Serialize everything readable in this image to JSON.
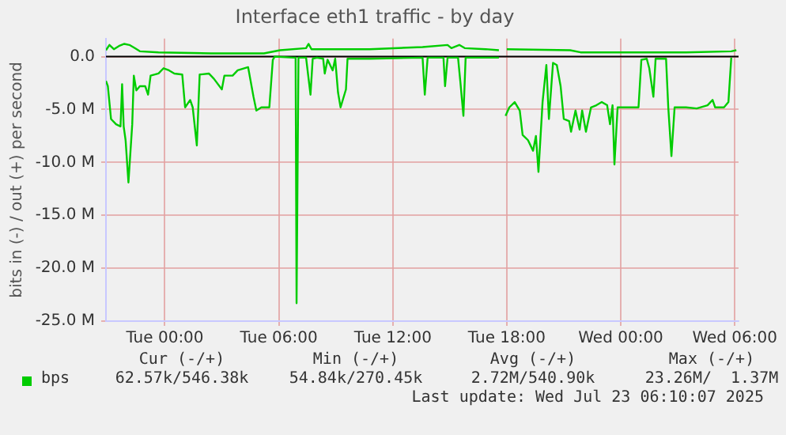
{
  "chart_data": {
    "type": "line",
    "title": "Interface eth1 traffic - by day",
    "ylabel": "bits in (-) / out (+) per second",
    "xlim": [
      "2025-07-21T20:54",
      "2025-07-23T06:12"
    ],
    "xticks": [
      {
        "value": "2025-07-22T00:00",
        "label": "Tue 00:00"
      },
      {
        "value": "2025-07-22T06:00",
        "label": "Tue 06:00"
      },
      {
        "value": "2025-07-22T12:00",
        "label": "Tue 12:00"
      },
      {
        "value": "2025-07-22T18:00",
        "label": "Tue 18:00"
      },
      {
        "value": "2025-07-23T00:00",
        "label": "Wed 00:00"
      },
      {
        "value": "2025-07-23T06:00",
        "label": "Wed 06:00"
      }
    ],
    "ylim": [
      -25,
      1.7
    ],
    "yticks": [
      {
        "value": -25,
        "label": "-25.0 M"
      },
      {
        "value": -20,
        "label": "-20.0 M"
      },
      {
        "value": -15,
        "label": "-15.0 M"
      },
      {
        "value": -10,
        "label": "-10.0 M"
      },
      {
        "value": -5,
        "label": "-5.0 M"
      },
      {
        "value": 0,
        "label": "0.0"
      }
    ],
    "grid": true,
    "legend": "bottom",
    "marker": "none",
    "line_style": "solid",
    "ref_lines": [
      {
        "axis": "y",
        "value": 0,
        "color": "#000000"
      }
    ],
    "series": [
      {
        "name": "bps",
        "color": "#00cc00",
        "x": [
          "2025-07-21T20:54",
          "2025-07-21T21:00",
          "2025-07-21T21:10",
          "2025-07-21T21:26",
          "2025-07-21T21:40",
          "2025-07-21T21:45",
          "2025-07-21T21:50",
          "2025-07-21T21:56",
          "2025-07-21T22:05",
          "2025-07-21T22:17",
          "2025-07-21T22:22",
          "2025-07-21T22:30",
          "2025-07-21T22:41",
          "2025-07-21T22:58",
          "2025-07-21T23:07",
          "2025-07-21T23:15",
          "2025-07-21T23:40",
          "2025-07-21T23:56",
          "2025-07-22T00:13",
          "2025-07-22T00:30",
          "2025-07-22T00:55",
          "2025-07-22T01:04",
          "2025-07-22T01:20",
          "2025-07-22T01:28",
          "2025-07-22T01:41",
          "2025-07-22T01:50",
          "2025-07-22T02:19",
          "2025-07-22T02:35",
          "2025-07-22T03:00",
          "2025-07-22T03:08",
          "2025-07-22T03:34",
          "2025-07-22T03:50",
          "2025-07-22T04:23",
          "2025-07-22T04:40",
          "2025-07-22T04:49",
          "2025-07-22T05:05",
          "2025-07-22T05:30",
          "2025-07-22T05:41",
          "2025-07-22T05:47",
          "2025-07-22T06:45",
          "2025-07-22T06:53",
          "2025-07-22T06:56",
          "2025-07-22T07:02",
          "2025-07-22T07:26",
          "2025-07-22T07:40",
          "2025-07-22T07:47",
          "2025-07-22T08:00",
          "2025-07-22T08:20",
          "2025-07-22T08:25",
          "2025-07-22T08:34",
          "2025-07-22T08:50",
          "2025-07-22T08:58",
          "2025-07-22T09:07",
          "2025-07-22T09:15",
          "2025-07-22T09:32",
          "2025-07-22T09:37",
          "2025-07-22T10:47",
          "2025-07-22T13:34",
          "2025-07-22T13:41",
          "2025-07-22T13:50",
          "2025-07-22T14:40",
          "2025-07-22T14:45",
          "2025-07-22T14:53",
          "2025-07-22T15:26",
          "2025-07-22T15:34",
          "2025-07-22T15:43",
          "2025-07-22T15:50",
          "2025-07-22T17:26",
          "2025-07-22T17:35",
          "2025-07-22T17:48",
          "2025-07-22T17:56",
          "2025-07-22T18:08",
          "2025-07-22T18:25",
          "2025-07-22T18:41",
          "2025-07-22T18:50",
          "2025-07-22T19:07",
          "2025-07-22T19:23",
          "2025-07-22T19:32",
          "2025-07-22T19:40",
          "2025-07-22T19:53",
          "2025-07-22T20:05",
          "2025-07-22T20:13",
          "2025-07-22T20:26",
          "2025-07-22T20:38",
          "2025-07-22T20:50",
          "2025-07-22T21:00",
          "2025-07-22T21:17",
          "2025-07-22T21:23",
          "2025-07-22T21:37",
          "2025-07-22T21:50",
          "2025-07-22T21:58",
          "2025-07-22T22:10",
          "2025-07-22T22:26",
          "2025-07-22T22:43",
          "2025-07-22T23:00",
          "2025-07-22T23:17",
          "2025-07-22T23:26",
          "2025-07-22T23:34",
          "2025-07-22T23:40",
          "2025-07-22T23:50",
          "2025-07-23T00:56",
          "2025-07-23T01:05",
          "2025-07-23T01:22",
          "2025-07-23T01:30",
          "2025-07-23T01:43",
          "2025-07-23T01:50",
          "2025-07-23T02:23",
          "2025-07-23T02:30",
          "2025-07-23T02:40",
          "2025-07-23T02:50",
          "2025-07-23T03:26",
          "2025-07-23T04:00",
          "2025-07-23T04:34",
          "2025-07-23T04:50",
          "2025-07-23T04:58",
          "2025-07-23T05:26",
          "2025-07-23T05:40",
          "2025-07-23T05:49"
        ],
        "values": [
          -2.3,
          -2.8,
          -5.9,
          -6.4,
          -6.6,
          -2.6,
          -6.6,
          -7.9,
          -11.9,
          -6.4,
          -1.8,
          -3.2,
          -2.8,
          -2.8,
          -3.6,
          -1.8,
          -1.6,
          -1.1,
          -1.3,
          -1.6,
          -1.7,
          -4.8,
          -4.1,
          -4.8,
          -8.4,
          -1.7,
          -1.6,
          -2.1,
          -3.1,
          -1.8,
          -1.8,
          -1.3,
          -1.0,
          -3.8,
          -5.1,
          -4.8,
          -4.8,
          -0.3,
          0.0,
          -0.1,
          -0.1,
          -23.3,
          -0.1,
          -0.1,
          -3.6,
          -0.2,
          -0.1,
          -0.2,
          -1.6,
          -0.3,
          -1.3,
          -0.2,
          -3.4,
          -4.8,
          -3.1,
          -0.2,
          -0.2,
          -0.1,
          -3.6,
          -0.1,
          -0.1,
          -2.8,
          -0.1,
          -0.1,
          -2.6,
          -5.6,
          -0.1,
          -0.1,
          -0.1,
          null,
          -5.6,
          -4.8,
          -4.3,
          -5.1,
          -7.4,
          -7.9,
          -8.9,
          -7.5,
          -10.9,
          -4.3,
          -0.8,
          -5.9,
          -0.6,
          -0.8,
          -2.8,
          -5.9,
          -6.1,
          -7.1,
          -5.1,
          -6.9,
          -5.1,
          -7.1,
          -4.8,
          -4.6,
          -4.3,
          -4.6,
          -6.4,
          -4.6,
          -10.2,
          -4.8,
          -4.8,
          -0.3,
          -0.2,
          -1.1,
          -3.8,
          -0.2,
          -0.2,
          -4.8,
          -9.4,
          -4.8,
          -4.8,
          -4.9,
          -4.6,
          -4.1,
          -4.8,
          -4.8,
          -4.3,
          -0.1
        ]
      },
      {
        "color": "#00cc00",
        "x": [
          "2025-07-21T20:54",
          "2025-07-21T21:05",
          "2025-07-21T21:19",
          "2025-07-21T21:35",
          "2025-07-21T21:52",
          "2025-07-21T22:08",
          "2025-07-21T22:25",
          "2025-07-21T22:41",
          "2025-07-21T23:40",
          "2025-07-22T02:26",
          "2025-07-22T05:13",
          "2025-07-22T06:04",
          "2025-07-22T07:26",
          "2025-07-22T07:34",
          "2025-07-22T07:43",
          "2025-07-22T10:47",
          "2025-07-22T13:34",
          "2025-07-22T14:53",
          "2025-07-22T15:05",
          "2025-07-22T15:30",
          "2025-07-22T15:47",
          "2025-07-22T16:53",
          "2025-07-22T17:35",
          "2025-07-22T17:48",
          "2025-07-22T18:00",
          "2025-07-22T21:20",
          "2025-07-22T21:53",
          "2025-07-23T00:40",
          "2025-07-23T03:26",
          "2025-07-23T05:49",
          "2025-07-23T06:05"
        ],
        "values": [
          0.6,
          1.1,
          0.7,
          1.0,
          1.2,
          1.1,
          0.8,
          0.5,
          0.4,
          0.3,
          0.3,
          0.6,
          0.8,
          1.2,
          0.7,
          0.7,
          0.9,
          1.1,
          0.8,
          1.1,
          0.8,
          0.7,
          0.6,
          null,
          0.7,
          0.6,
          0.4,
          0.4,
          0.4,
          0.5,
          0.6
        ]
      }
    ],
    "annotations": [
      "Cur (-/+)",
      "Min (-/+)",
      "Avg (-/+)",
      "Max (-/+)",
      "62.57k/546.38k",
      "54.84k/270.45k",
      "2.72M/540.90k",
      "23.26M/  1.37M",
      "Last update: Wed Jul 23 06:10:07 2025"
    ]
  }
}
